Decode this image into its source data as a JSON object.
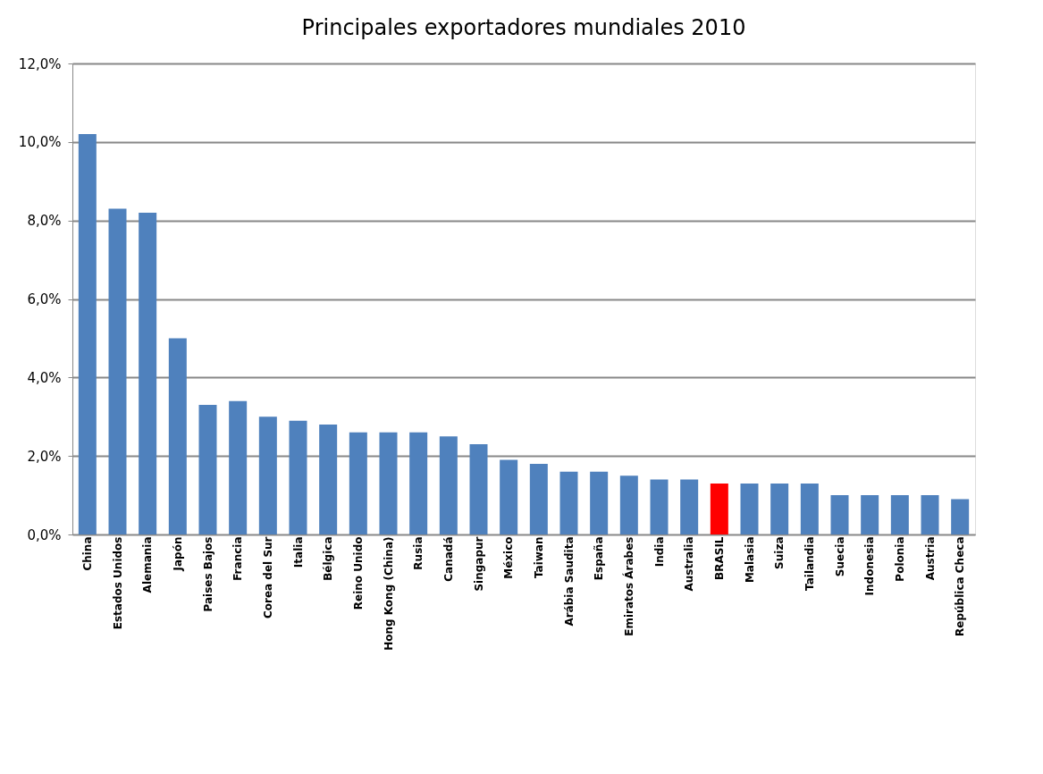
{
  "chart_data": {
    "type": "bar",
    "title": "Principales exportadores  mundiales 2010",
    "categories": [
      "China",
      "Estados Unidos",
      "Alemania",
      "Japón",
      "Paises Bajos",
      "Francia",
      "Corea del Sur",
      "Italia",
      "Bélgica",
      "Reino Unido",
      "Hong Kong (China)",
      "Rusia",
      "Canadá",
      "Singapur",
      "México",
      "Taiwan",
      "Arábia Saudita",
      "España",
      "Emiratos Árabes",
      "India",
      "Australia",
      "BRASIL",
      "Malasia",
      "Suiza",
      "Tailandia",
      "Suecia",
      "Indonesia",
      "Polonia",
      "Austria",
      "República Checa"
    ],
    "values": [
      10.2,
      8.3,
      8.2,
      5.0,
      3.3,
      3.4,
      3.0,
      2.9,
      2.8,
      2.6,
      2.6,
      2.6,
      2.5,
      2.3,
      1.9,
      1.8,
      1.6,
      1.6,
      1.5,
      1.4,
      1.4,
      1.3,
      1.3,
      1.3,
      1.3,
      1.0,
      1.0,
      1.0,
      1.0,
      0.9
    ],
    "colors": [
      "#4f81bd",
      "#4f81bd",
      "#4f81bd",
      "#4f81bd",
      "#4f81bd",
      "#4f81bd",
      "#4f81bd",
      "#4f81bd",
      "#4f81bd",
      "#4f81bd",
      "#4f81bd",
      "#4f81bd",
      "#4f81bd",
      "#4f81bd",
      "#4f81bd",
      "#4f81bd",
      "#4f81bd",
      "#4f81bd",
      "#4f81bd",
      "#4f81bd",
      "#4f81bd",
      "#ff0000",
      "#4f81bd",
      "#4f81bd",
      "#4f81bd",
      "#4f81bd",
      "#4f81bd",
      "#4f81bd",
      "#4f81bd",
      "#4f81bd"
    ],
    "ylim": [
      0,
      12
    ],
    "yticks": [
      {
        "value": 0,
        "label": "0,0%"
      },
      {
        "value": 2,
        "label": "2,0%"
      },
      {
        "value": 4,
        "label": "4,0%"
      },
      {
        "value": 6,
        "label": "6,0%"
      },
      {
        "value": 8,
        "label": "8,0%"
      },
      {
        "value": 10,
        "label": "10,0%"
      },
      {
        "value": 12,
        "label": "12,0%"
      }
    ],
    "grid": "y"
  }
}
